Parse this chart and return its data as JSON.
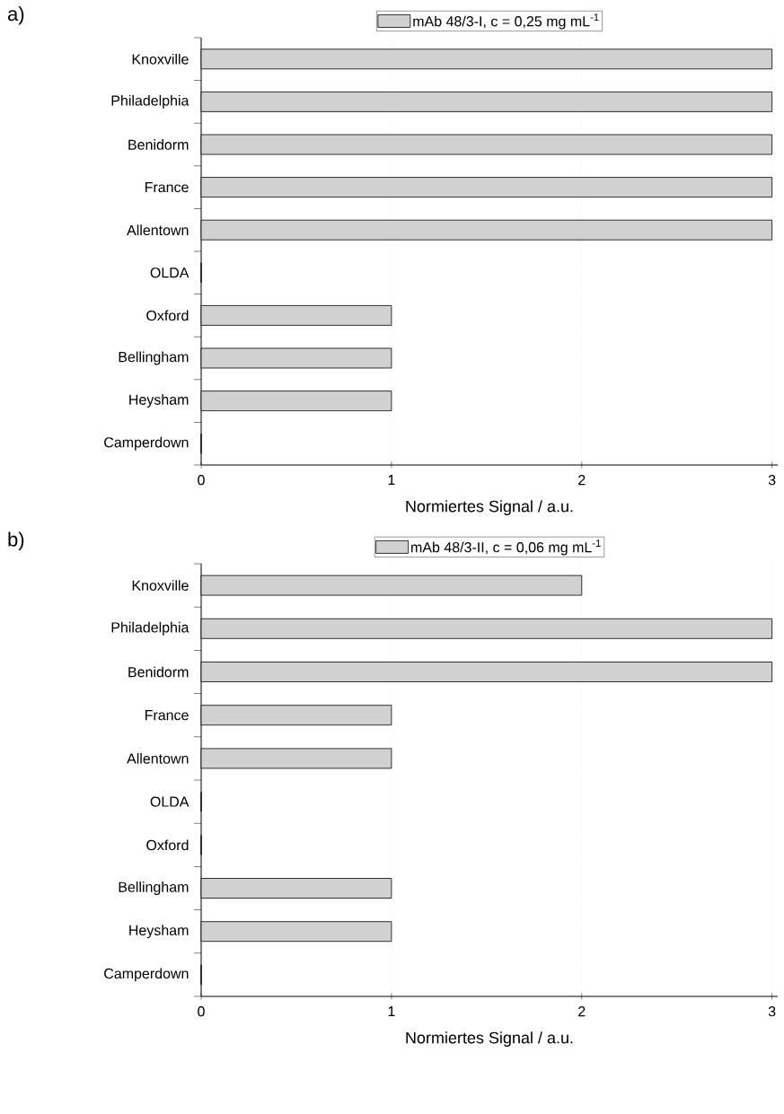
{
  "chart_data": [
    {
      "type": "bar",
      "orientation": "horizontal",
      "annotations": [
        "a)"
      ],
      "xlabel": "Normiertes Signal / a.u.",
      "categories": [
        "Knoxville",
        "Philadelphia",
        "Benidorm",
        "France",
        "Allentown",
        "OLDA",
        "Oxford",
        "Bellingham",
        "Heysham",
        "Camperdown"
      ],
      "series": [
        {
          "name": "mAb 48/3-I, c = 0,25 mg mL$^{-1}$",
          "color": "#000000",
          "values": [
            3,
            3,
            3,
            3,
            3,
            0,
            1,
            1,
            1,
            0
          ]
        }
      ],
      "xlim": [
        0,
        3.03
      ],
      "xticks": [
        0,
        1,
        2,
        3
      ],
      "grid": "x",
      "legend": "top"
    },
    {
      "type": "bar",
      "orientation": "horizontal",
      "annotations": [
        "b)"
      ],
      "xlabel": "Normiertes Signal / a.u.",
      "categories": [
        "Knoxville",
        "Philadelphia",
        "Benidorm",
        "France",
        "Allentown",
        "OLDA",
        "Oxford",
        "Bellingham",
        "Heysham",
        "Camperdown"
      ],
      "series": [
        {
          "name": "mAb 48/3-II, c = 0,06 mg mL$^{-1}$",
          "color": "#000000",
          "values": [
            2,
            3,
            3,
            1,
            1,
            0,
            0,
            1,
            1,
            0
          ]
        }
      ],
      "xlim": [
        0,
        3.03
      ],
      "xticks": [
        0,
        1,
        2,
        3
      ],
      "grid": "x",
      "legend": "top"
    }
  ]
}
